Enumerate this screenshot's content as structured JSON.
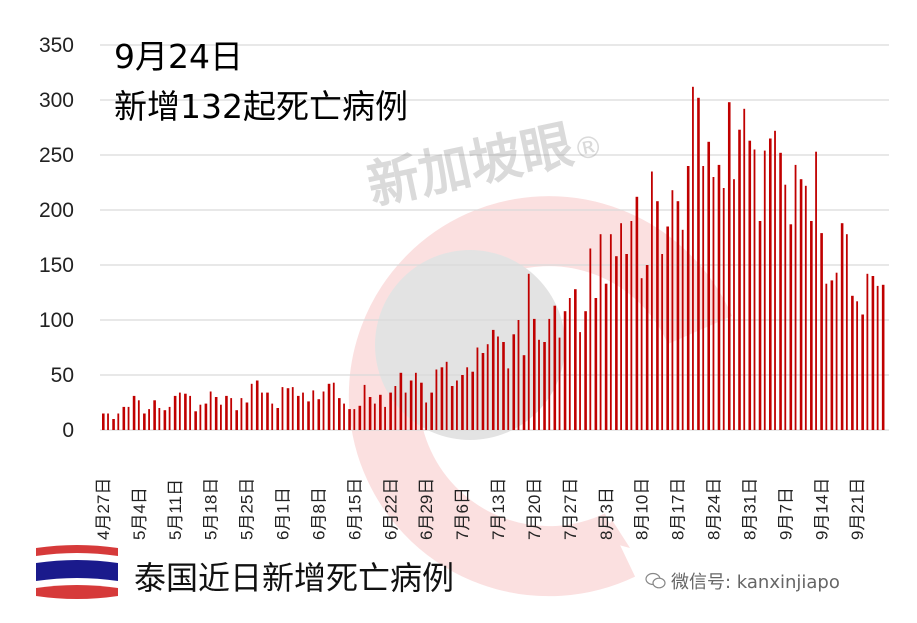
{
  "header": {
    "date_label": "9月24日",
    "headline": "新增132起死亡病例"
  },
  "footer": {
    "title": "泰国近日新增死亡病例",
    "wechat_label": "微信号: kanxinjiapo",
    "flag": "thailand-flag"
  },
  "watermark": {
    "text": "新加坡眼",
    "mark": "®"
  },
  "colors": {
    "bar": "#c00000",
    "grid": "#d9d9d9",
    "watermark_red": "#f4c7c7",
    "watermark_grey": "#d9d9d9"
  },
  "chart_data": {
    "type": "bar",
    "title": "9月24日 新增132起死亡病例",
    "subtitle": "泰国近日新增死亡病例",
    "xlabel": "",
    "ylabel": "",
    "ylim": [
      0,
      350
    ],
    "yticks": [
      0,
      50,
      100,
      150,
      200,
      250,
      300,
      350
    ],
    "grid": true,
    "legend": null,
    "xtick_labels": [
      "4月27日",
      "5月4日",
      "5月11日",
      "5月18日",
      "5月25日",
      "6月1日",
      "6月8日",
      "6月15日",
      "6月22日",
      "6月29日",
      "7月6日",
      "7月13日",
      "7月20日",
      "7月27日",
      "8月3日",
      "8月10日",
      "8月17日",
      "8月24日",
      "8月31日",
      "9月7日",
      "9月14日",
      "9月21日"
    ],
    "start_date": "4月27日",
    "end_date": "9月24日",
    "values": [
      15,
      15,
      10,
      15,
      21,
      21,
      31,
      27,
      15,
      19,
      27,
      20,
      18,
      21,
      31,
      34,
      33,
      31,
      17,
      23,
      24,
      35,
      30,
      23,
      31,
      29,
      18,
      29,
      25,
      42,
      45,
      34,
      34,
      24,
      20,
      39,
      38,
      39,
      31,
      34,
      26,
      36,
      28,
      35,
      42,
      43,
      29,
      24,
      19,
      19,
      22,
      41,
      30,
      24,
      32,
      21,
      34,
      40,
      52,
      34,
      45,
      52,
      43,
      25,
      34,
      55,
      57,
      62,
      40,
      45,
      50,
      57,
      53,
      75,
      70,
      78,
      91,
      85,
      80,
      56,
      87,
      100,
      68,
      142,
      101,
      82,
      80,
      101,
      113,
      84,
      108,
      120,
      128,
      89,
      108,
      165,
      120,
      178,
      133,
      178,
      158,
      188,
      160,
      190,
      212,
      138,
      150,
      235,
      208,
      160,
      185,
      218,
      208,
      182,
      240,
      312,
      302,
      240,
      262,
      230,
      241,
      220,
      298,
      228,
      273,
      292,
      263,
      255,
      190,
      254,
      265,
      272,
      252,
      223,
      187,
      241,
      228,
      222,
      190,
      253,
      179,
      133,
      136,
      143,
      188,
      178,
      122,
      117,
      105,
      142,
      140,
      131,
      132
    ]
  }
}
